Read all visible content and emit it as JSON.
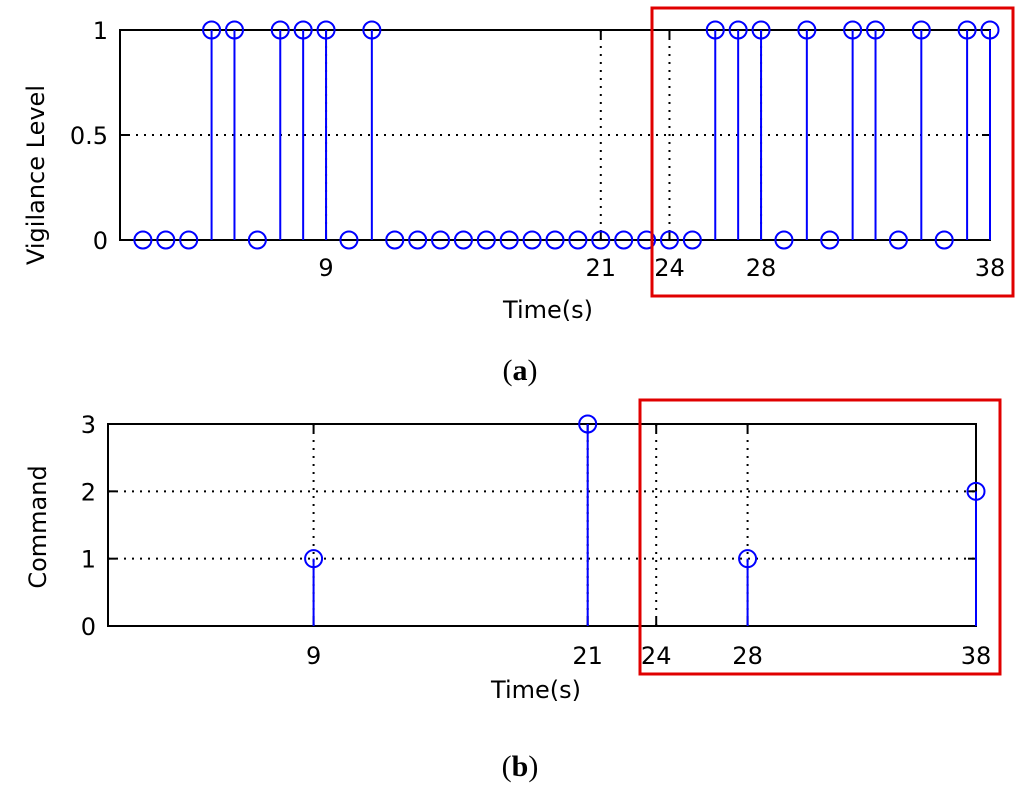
{
  "colors": {
    "stem": "#0000ff",
    "highlight": "#ff0000",
    "grid": "#000000",
    "axes": "#000000"
  },
  "chart_data": [
    {
      "type": "stem",
      "caption": "a",
      "xlabel": "Time(s)",
      "ylabel": "Vigilance Level",
      "xlim": [
        0,
        38
      ],
      "ylim": [
        0,
        1
      ],
      "xticks": [
        9,
        21,
        24,
        28,
        38
      ],
      "yticks": [
        0,
        0.5,
        1
      ],
      "ytick_labels": [
        "0",
        "0.5",
        "1"
      ],
      "grid": true,
      "highlight_range": [
        24,
        38
      ],
      "x": [
        1,
        2,
        3,
        4,
        5,
        6,
        7,
        8,
        9,
        10,
        11,
        12,
        13,
        14,
        15,
        16,
        17,
        18,
        19,
        20,
        21,
        22,
        23,
        24,
        25,
        26,
        27,
        28,
        29,
        30,
        31,
        32,
        33,
        34,
        35,
        36,
        37,
        38
      ],
      "values": [
        0,
        0,
        0,
        1,
        1,
        0,
        1,
        1,
        1,
        0,
        1,
        0,
        0,
        0,
        0,
        0,
        0,
        0,
        0,
        0,
        0,
        0,
        0,
        0,
        0,
        1,
        1,
        1,
        0,
        1,
        0,
        1,
        1,
        0,
        1,
        0,
        1,
        1
      ]
    },
    {
      "type": "stem",
      "caption": "b",
      "xlabel": "Time(s)",
      "ylabel": "Command",
      "xlim": [
        0,
        38
      ],
      "ylim": [
        0,
        3
      ],
      "xticks": [
        9,
        21,
        24,
        28,
        38
      ],
      "yticks": [
        0,
        1,
        2,
        3
      ],
      "ytick_labels": [
        "0",
        "1",
        "2",
        "3"
      ],
      "grid": true,
      "highlight_range": [
        24,
        38
      ],
      "x": [
        9,
        21,
        28,
        38
      ],
      "values": [
        1,
        3,
        1,
        2
      ]
    }
  ]
}
